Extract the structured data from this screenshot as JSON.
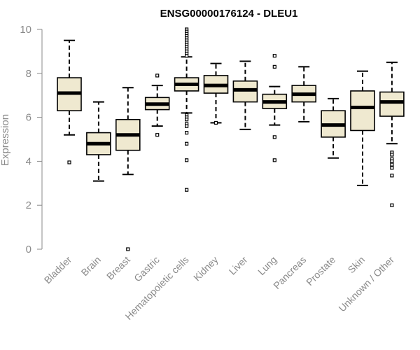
{
  "chart_data": {
    "type": "box",
    "title": "ENSG00000176124 - DLEU1",
    "xlabel": "",
    "ylabel": "Expression",
    "ylim": [
      0,
      10
    ],
    "yticks": [
      0,
      2,
      4,
      6,
      8,
      10
    ],
    "grid": false,
    "legend": "none",
    "box_fill": "#efe9d0",
    "box_stroke": "#000000",
    "categories": [
      "Bladder",
      "Brain",
      "Breast",
      "Gastric",
      "Hematopoietic cells",
      "Kidney",
      "Liver",
      "Lung",
      "Pancreas",
      "Prostate",
      "Skin",
      "Unknown / Other"
    ],
    "boxes": [
      {
        "label": "Bladder",
        "min": 5.2,
        "q1": 6.3,
        "median": 7.1,
        "q3": 7.8,
        "max": 9.5,
        "outliers": [
          3.95
        ]
      },
      {
        "label": "Brain",
        "min": 3.1,
        "q1": 4.3,
        "median": 4.8,
        "q3": 5.3,
        "max": 6.7,
        "outliers": []
      },
      {
        "label": "Breast",
        "min": 3.4,
        "q1": 4.5,
        "median": 5.2,
        "q3": 5.9,
        "max": 7.35,
        "outliers": [
          0.0
        ]
      },
      {
        "label": "Gastric",
        "min": 5.6,
        "q1": 6.35,
        "median": 6.6,
        "q3": 6.9,
        "max": 7.45,
        "outliers": [
          7.9,
          5.2
        ]
      },
      {
        "label": "Hematopoietic cells",
        "min": 6.2,
        "q1": 7.2,
        "median": 7.5,
        "q3": 7.8,
        "max": 8.75,
        "outliers": [
          10.0,
          9.9,
          9.8,
          9.7,
          9.6,
          9.5,
          9.4,
          9.3,
          9.2,
          9.1,
          9.0,
          8.9,
          8.8,
          6.1,
          6.0,
          5.9,
          5.7,
          5.6,
          5.3,
          4.8,
          4.05,
          2.7
        ]
      },
      {
        "label": "Kidney",
        "min": 5.75,
        "q1": 7.1,
        "median": 7.45,
        "q3": 7.9,
        "max": 8.45,
        "outliers": [
          5.75
        ]
      },
      {
        "label": "Liver",
        "min": 5.45,
        "q1": 6.7,
        "median": 7.25,
        "q3": 7.65,
        "max": 8.55,
        "outliers": []
      },
      {
        "label": "Lung",
        "min": 5.65,
        "q1": 6.4,
        "median": 6.7,
        "q3": 7.05,
        "max": 7.4,
        "outliers": [
          8.8,
          8.3,
          5.1,
          4.05
        ]
      },
      {
        "label": "Pancreas",
        "min": 5.8,
        "q1": 6.7,
        "median": 7.05,
        "q3": 7.45,
        "max": 8.3,
        "outliers": []
      },
      {
        "label": "Prostate",
        "min": 4.15,
        "q1": 5.1,
        "median": 5.65,
        "q3": 6.3,
        "max": 6.85,
        "outliers": []
      },
      {
        "label": "Skin",
        "min": 2.9,
        "q1": 5.4,
        "median": 6.45,
        "q3": 7.2,
        "max": 8.1,
        "outliers": []
      },
      {
        "label": "Unknown / Other",
        "min": 4.8,
        "q1": 6.05,
        "median": 6.7,
        "q3": 7.15,
        "max": 8.5,
        "outliers": [
          4.4,
          4.3,
          4.1,
          4.0,
          3.85,
          3.7,
          3.35,
          2.0
        ]
      }
    ]
  }
}
